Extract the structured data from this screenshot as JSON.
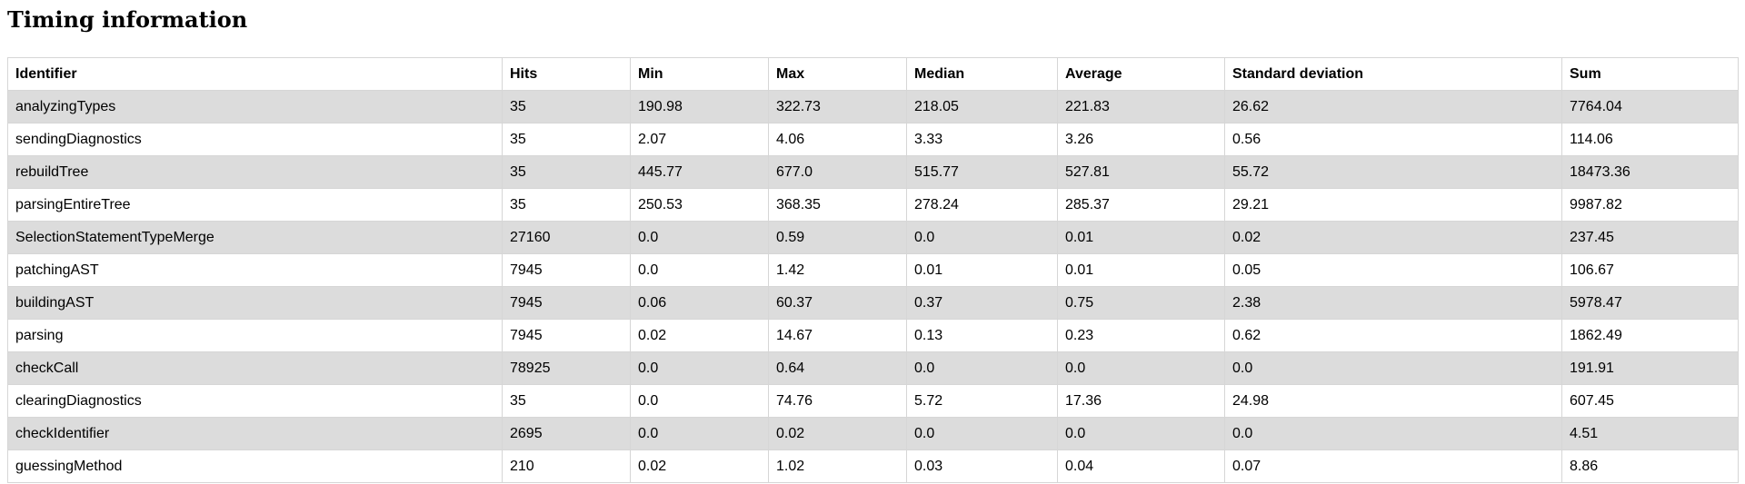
{
  "page": {
    "title": "Timing information"
  },
  "table": {
    "columns": [
      "Identifier",
      "Hits",
      "Min",
      "Max",
      "Median",
      "Average",
      "Standard deviation",
      "Sum"
    ],
    "rows": [
      [
        "analyzingTypes",
        "35",
        "190.98",
        "322.73",
        "218.05",
        "221.83",
        "26.62",
        "7764.04"
      ],
      [
        "sendingDiagnostics",
        "35",
        "2.07",
        "4.06",
        "3.33",
        "3.26",
        "0.56",
        "114.06"
      ],
      [
        "rebuildTree",
        "35",
        "445.77",
        "677.0",
        "515.77",
        "527.81",
        "55.72",
        "18473.36"
      ],
      [
        "parsingEntireTree",
        "35",
        "250.53",
        "368.35",
        "278.24",
        "285.37",
        "29.21",
        "9987.82"
      ],
      [
        "SelectionStatementTypeMerge",
        "27160",
        "0.0",
        "0.59",
        "0.0",
        "0.01",
        "0.02",
        "237.45"
      ],
      [
        "patchingAST",
        "7945",
        "0.0",
        "1.42",
        "0.01",
        "0.01",
        "0.05",
        "106.67"
      ],
      [
        "buildingAST",
        "7945",
        "0.06",
        "60.37",
        "0.37",
        "0.75",
        "2.38",
        "5978.47"
      ],
      [
        "parsing",
        "7945",
        "0.02",
        "14.67",
        "0.13",
        "0.23",
        "0.62",
        "1862.49"
      ],
      [
        "checkCall",
        "78925",
        "0.0",
        "0.64",
        "0.0",
        "0.0",
        "0.0",
        "191.91"
      ],
      [
        "clearingDiagnostics",
        "35",
        "0.0",
        "74.76",
        "5.72",
        "17.36",
        "24.98",
        "607.45"
      ],
      [
        "checkIdentifier",
        "2695",
        "0.0",
        "0.02",
        "0.0",
        "0.0",
        "0.0",
        "4.51"
      ],
      [
        "guessingMethod",
        "210",
        "0.02",
        "1.02",
        "0.03",
        "0.04",
        "0.07",
        "8.86"
      ]
    ]
  }
}
